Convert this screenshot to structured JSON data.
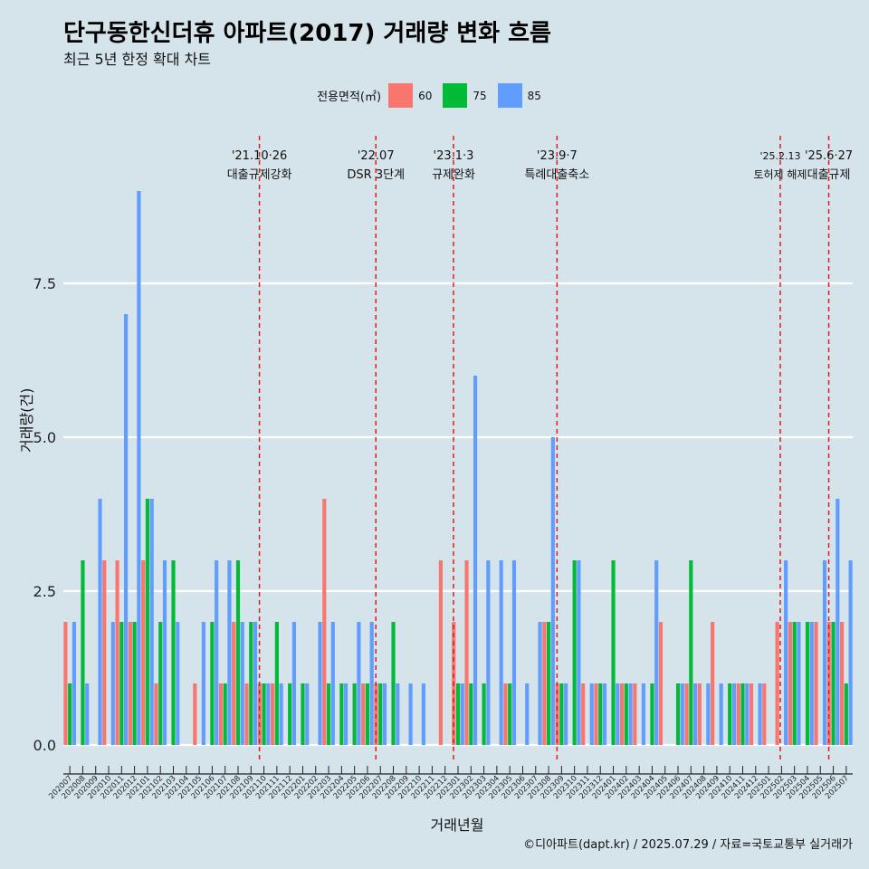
{
  "title": "단구동한신더휴 아파트(2017) 거래량 변화 흐름",
  "subtitle": "최근 5년 한정 확대 차트",
  "caption": "©디아파트(dapt.kr) / 2025.07.29 / 자료=국토교통부 실거래가",
  "legend": {
    "title": "전용면적(㎡)",
    "items": [
      {
        "label": "60",
        "color": "#f8766d"
      },
      {
        "label": "75",
        "color": "#00ba38"
      },
      {
        "label": "85",
        "color": "#619cff"
      }
    ]
  },
  "chart_data": {
    "type": "bar",
    "xlabel": "거래년월",
    "ylabel": "거래량(건)",
    "ylim": [
      0,
      10
    ],
    "yticks": [
      "0.0",
      "2.5",
      "5.0",
      "7.5"
    ],
    "categories": [
      "202007",
      "202008",
      "202009",
      "202010",
      "202011",
      "202012",
      "202101",
      "202102",
      "202103",
      "202104",
      "202105",
      "202106",
      "202107",
      "202108",
      "202109",
      "202110",
      "202111",
      "202112",
      "202201",
      "202202",
      "202203",
      "202204",
      "202205",
      "202206",
      "202207",
      "202208",
      "202209",
      "202210",
      "202211",
      "202212",
      "202301",
      "202302",
      "202303",
      "202304",
      "202305",
      "202306",
      "202307",
      "202308",
      "202309",
      "202310",
      "202311",
      "202312",
      "202401",
      "202402",
      "202403",
      "202404",
      "202405",
      "202406",
      "202407",
      "202408",
      "202409",
      "202410",
      "202411",
      "202412",
      "202501",
      "202502",
      "202503",
      "202504",
      "202505",
      "202506",
      "202507"
    ],
    "series": [
      {
        "name": "60",
        "color": "#f8766d",
        "values": [
          2,
          0,
          0,
          3,
          3,
          2,
          3,
          1,
          0,
          0,
          1,
          0,
          1,
          2,
          1,
          1,
          1,
          0,
          0,
          0,
          4,
          0,
          0,
          1,
          1,
          0,
          0,
          0,
          0,
          3,
          2,
          3,
          0,
          0,
          1,
          0,
          0,
          2,
          1,
          0,
          1,
          1,
          0,
          1,
          1,
          0,
          2,
          0,
          1,
          1,
          2,
          0,
          1,
          1,
          1,
          2,
          2,
          0,
          2,
          2,
          2
        ]
      },
      {
        "name": "75",
        "color": "#00ba38",
        "values": [
          1,
          3,
          0,
          0,
          2,
          2,
          4,
          2,
          3,
          0,
          0,
          2,
          1,
          3,
          2,
          1,
          2,
          1,
          1,
          0,
          1,
          1,
          1,
          1,
          1,
          2,
          0,
          0,
          0,
          0,
          1,
          1,
          1,
          0,
          1,
          0,
          0,
          2,
          1,
          3,
          0,
          1,
          3,
          1,
          0,
          1,
          0,
          1,
          3,
          0,
          0,
          1,
          1,
          0,
          0,
          0,
          2,
          2,
          0,
          2,
          1
        ]
      },
      {
        "name": "85",
        "color": "#619cff",
        "values": [
          2,
          1,
          4,
          2,
          7,
          9,
          4,
          3,
          2,
          0,
          2,
          3,
          3,
          2,
          2,
          1,
          1,
          2,
          1,
          2,
          2,
          1,
          2,
          2,
          1,
          1,
          1,
          1,
          0,
          0,
          1,
          6,
          3,
          3,
          3,
          1,
          2,
          5,
          1,
          3,
          1,
          1,
          1,
          1,
          1,
          3,
          0,
          1,
          1,
          1,
          1,
          1,
          1,
          1,
          0,
          3,
          2,
          2,
          3,
          4,
          3
        ]
      }
    ],
    "annotations": [
      {
        "category": "202110",
        "date": "'21.10·26",
        "text": "대출규제강화"
      },
      {
        "category": "202207",
        "date": "'22.07",
        "text": "DSR 3단계"
      },
      {
        "category": "202301",
        "date": "'23.1·3",
        "text": "규제완화"
      },
      {
        "category": "202309",
        "date": "'23.9·7",
        "text": "특례대출축소"
      },
      {
        "category": "202502",
        "date": "'25.2.13",
        "text": "토허제 해제"
      },
      {
        "category": "202506",
        "date": "'25.6·27",
        "text": "대출규제"
      }
    ],
    "grid": true
  }
}
